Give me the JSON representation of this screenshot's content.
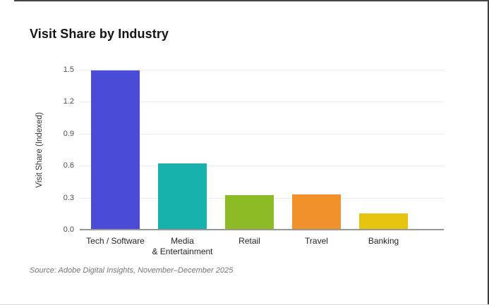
{
  "page": {
    "title": "Visit Share by Industry",
    "source_note": "Source: Adobe Digital Insights, November–December 2025"
  },
  "chart_data": {
    "type": "bar",
    "title": "Visit Share by Industry",
    "categories": [
      "Tech / Software",
      "Media\n& Entertainment",
      "Retail",
      "Travel",
      "Banking"
    ],
    "values": [
      1.5,
      0.63,
      0.33,
      0.34,
      0.16
    ],
    "bar_colors": [
      "#4a4cd8",
      "#17b2ab",
      "#8cbb26",
      "#f2912c",
      "#e5c40e"
    ],
    "xlabel": "",
    "ylabel": "Visit Share (Indexed)",
    "ylim": [
      0,
      1.5
    ],
    "yticks": [
      0.0,
      0.3,
      0.6,
      0.9,
      1.2,
      1.5
    ],
    "grid": true,
    "gridline_color": "#ebebeb",
    "axis_line_color": "#979797",
    "legend": "none"
  }
}
